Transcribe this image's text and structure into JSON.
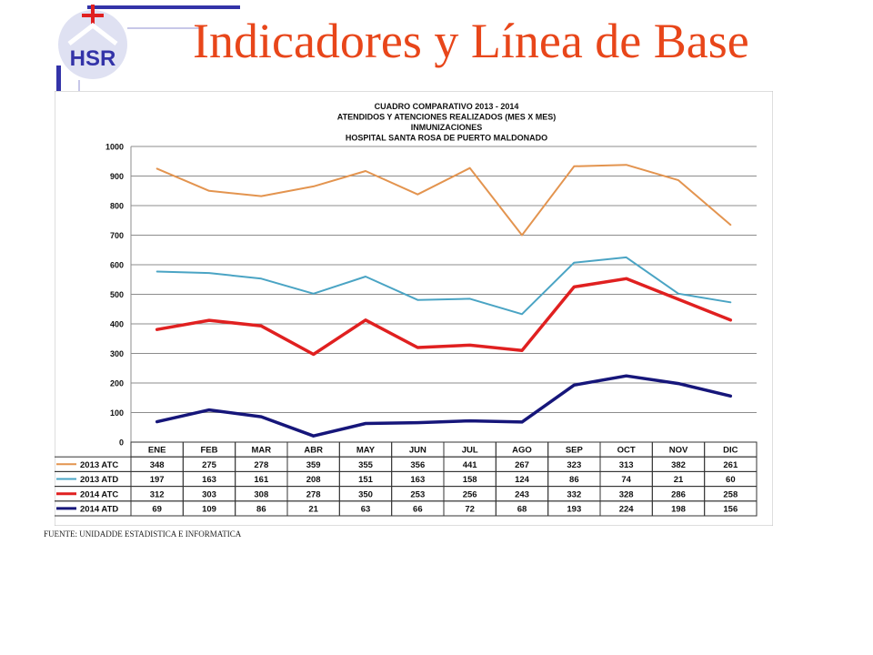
{
  "slide": {
    "title": "Indicadores y Línea de Base",
    "source_note": "FUENTE: UNIDADDE ESTADISTICA E INFORMATICA",
    "logo_text": "HSR",
    "title_color": "#e8461a",
    "accent_color": "#3333a8"
  },
  "chart_data": {
    "type": "line",
    "title_lines": [
      "CUADRO COMPARATIVO 2013 - 2014",
      "ATENDIDOS Y ATENCIONES  REALIZADOS  (MES X MES)",
      "INMUNIZACIONES",
      "HOSPITAL  SANTA ROSA DE PUERTO MALDONADO"
    ],
    "categories": [
      "ENE",
      "FEB",
      "MAR",
      "ABR",
      "MAY",
      "JUN",
      "JUL",
      "AGO",
      "SEP",
      "OCT",
      "NOV",
      "DIC"
    ],
    "ylim": [
      0,
      1000
    ],
    "yticks": [
      0,
      100,
      200,
      300,
      400,
      500,
      600,
      700,
      800,
      900,
      1000
    ],
    "grid": true,
    "legend": "table-below",
    "series": [
      {
        "name": "2013 ATC",
        "color": "#e3944f",
        "width": 2,
        "values": [
          348,
          275,
          278,
          359,
          355,
          356,
          441,
          267,
          323,
          313,
          382,
          261
        ],
        "plot_values": [
          925,
          850,
          832,
          865,
          917,
          838,
          927,
          700,
          933,
          938,
          886,
          735
        ]
      },
      {
        "name": "2013 ATD",
        "color": "#4aa4c4",
        "width": 2,
        "values": [
          197,
          163,
          161,
          208,
          151,
          163,
          158,
          124,
          86,
          74,
          21,
          60
        ],
        "plot_values": [
          577,
          572,
          553,
          502,
          560,
          481,
          485,
          433,
          607,
          625,
          502,
          473
        ]
      },
      {
        "name": "2014 ATC",
        "color": "#e02020",
        "width": 3.5,
        "values": [
          312,
          303,
          308,
          278,
          350,
          253,
          256,
          243,
          332,
          328,
          286,
          258
        ],
        "plot_values": [
          381,
          412,
          393,
          297,
          413,
          320,
          328,
          310,
          525,
          553,
          483,
          413
        ]
      },
      {
        "name": "2014 ATD",
        "color": "#16167a",
        "width": 3.5,
        "values": [
          69,
          109,
          86,
          21,
          63,
          66,
          72,
          68,
          193,
          224,
          198,
          156
        ],
        "plot_values": [
          69,
          109,
          86,
          21,
          63,
          66,
          72,
          68,
          193,
          224,
          198,
          156
        ]
      }
    ]
  }
}
